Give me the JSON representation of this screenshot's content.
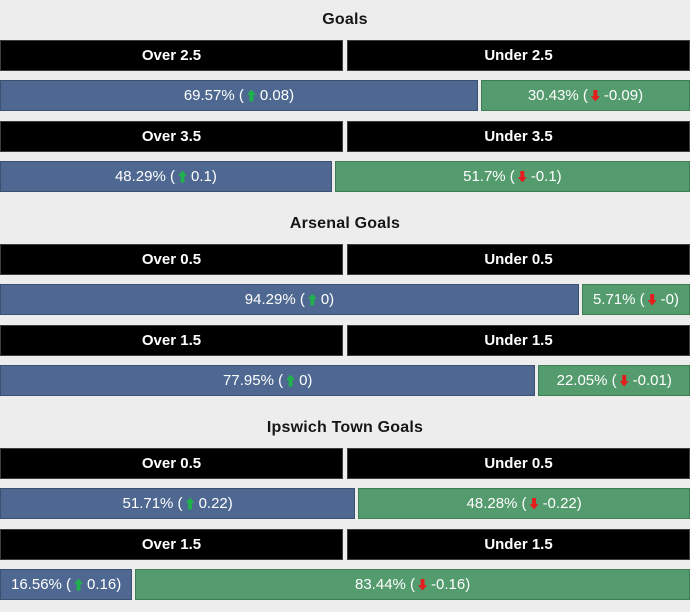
{
  "colors": {
    "page_bg": "#ededee",
    "over_bar": "#4e6891",
    "under_bar": "#549b6e",
    "header_bg": "#000000",
    "header_text": "#ffffff",
    "up_arrow": "#1fb14c",
    "down_arrow": "#e41e1e"
  },
  "sections": [
    {
      "title": "Goals",
      "markets": [
        {
          "over": {
            "label": "Over 2.5",
            "pct": "69.57%",
            "change": "0.08",
            "width": 69.57
          },
          "under": {
            "label": "Under 2.5",
            "pct": "30.43%",
            "change": "-0.09",
            "width": 30.43
          }
        },
        {
          "over": {
            "label": "Over 3.5",
            "pct": "48.29%",
            "change": "0.1",
            "width": 48.29
          },
          "under": {
            "label": "Under 3.5",
            "pct": "51.7%",
            "change": "-0.1",
            "width": 51.7
          }
        }
      ]
    },
    {
      "title": "Arsenal Goals",
      "markets": [
        {
          "over": {
            "label": "Over 0.5",
            "pct": "94.29%",
            "change": "0",
            "width": 94.29
          },
          "under": {
            "label": "Under 0.5",
            "pct": "5.71%",
            "change": "-0",
            "width": 5.71
          }
        },
        {
          "over": {
            "label": "Over 1.5",
            "pct": "77.95%",
            "change": "0",
            "width": 77.95
          },
          "under": {
            "label": "Under 1.5",
            "pct": "22.05%",
            "change": "-0.01",
            "width": 22.05
          }
        }
      ]
    },
    {
      "title": "Ipswich Town Goals",
      "markets": [
        {
          "over": {
            "label": "Over 0.5",
            "pct": "51.71%",
            "change": "0.22",
            "width": 51.71
          },
          "under": {
            "label": "Under 0.5",
            "pct": "48.28%",
            "change": "-0.22",
            "width": 48.28
          }
        },
        {
          "over": {
            "label": "Over 1.5",
            "pct": "16.56%",
            "change": "0.16",
            "width": 16.56
          },
          "under": {
            "label": "Under 1.5",
            "pct": "83.44%",
            "change": "-0.16",
            "width": 83.44
          }
        }
      ]
    }
  ],
  "chart_data": [
    {
      "type": "bar",
      "title": "Goals",
      "categories": [
        "Over 2.5 / Under 2.5",
        "Over 3.5 / Under 3.5"
      ],
      "series": [
        {
          "name": "Over",
          "values": [
            69.57,
            48.29
          ],
          "changes": [
            0.08,
            0.1
          ]
        },
        {
          "name": "Under",
          "values": [
            30.43,
            51.7
          ],
          "changes": [
            -0.09,
            -0.1
          ]
        }
      ],
      "unit": "%",
      "xlim": [
        0,
        100
      ],
      "orientation": "horizontal-stacked"
    },
    {
      "type": "bar",
      "title": "Arsenal Goals",
      "categories": [
        "Over 0.5 / Under 0.5",
        "Over 1.5 / Under 1.5"
      ],
      "series": [
        {
          "name": "Over",
          "values": [
            94.29,
            77.95
          ],
          "changes": [
            0,
            0
          ]
        },
        {
          "name": "Under",
          "values": [
            5.71,
            22.05
          ],
          "changes": [
            0,
            -0.01
          ]
        }
      ],
      "unit": "%",
      "xlim": [
        0,
        100
      ],
      "orientation": "horizontal-stacked"
    },
    {
      "type": "bar",
      "title": "Ipswich Town Goals",
      "categories": [
        "Over 0.5 / Under 0.5",
        "Over 1.5 / Under 1.5"
      ],
      "series": [
        {
          "name": "Over",
          "values": [
            51.71,
            16.56
          ],
          "changes": [
            0.22,
            0.16
          ]
        },
        {
          "name": "Under",
          "values": [
            48.28,
            83.44
          ],
          "changes": [
            -0.22,
            -0.16
          ]
        }
      ],
      "unit": "%",
      "xlim": [
        0,
        100
      ],
      "orientation": "horizontal-stacked"
    }
  ]
}
